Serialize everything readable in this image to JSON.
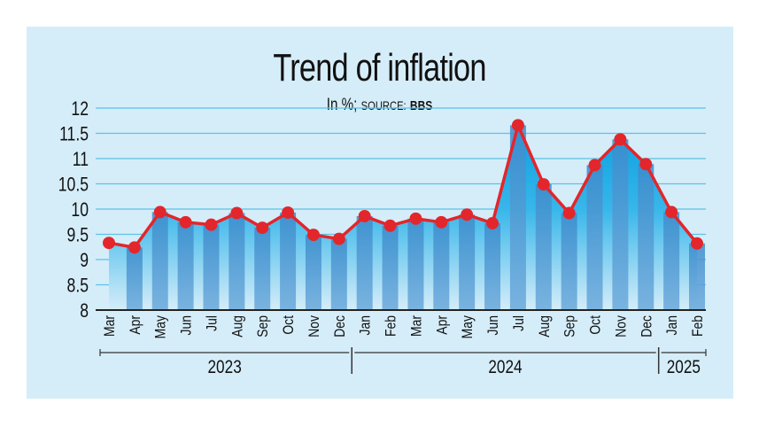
{
  "chart_data": {
    "type": "area",
    "title": "Trend of inflation",
    "subtitle_unit": "In %;",
    "subtitle_source_label": "SOURCE:",
    "subtitle_source": "BBS",
    "categories": [
      "Mar",
      "Apr",
      "May",
      "Jun",
      "Jul",
      "Aug",
      "Sep",
      "Oct",
      "Nov",
      "Dec",
      "Jan",
      "Feb",
      "Mar",
      "Apr",
      "May",
      "Jun",
      "Jul",
      "Aug",
      "Sep",
      "Oct",
      "Nov",
      "Dec",
      "Jan",
      "Feb"
    ],
    "groups": [
      {
        "label": "2023",
        "count": 10
      },
      {
        "label": "2024",
        "count": 12
      },
      {
        "label": "2025",
        "count": 2
      }
    ],
    "values": [
      9.33,
      9.24,
      9.94,
      9.74,
      9.69,
      9.92,
      9.63,
      9.93,
      9.49,
      9.41,
      9.86,
      9.67,
      9.81,
      9.74,
      9.89,
      9.72,
      11.66,
      10.49,
      9.92,
      10.87,
      11.38,
      10.89,
      9.94,
      9.32
    ],
    "yticks": [
      "8",
      "8.5",
      "9",
      "9.5",
      "10",
      "10.5",
      "11",
      "11.5",
      "12"
    ],
    "ylim": [
      8,
      12
    ],
    "grid": true,
    "colors": {
      "line": "#e3262b",
      "marker": "#e3262b",
      "area": "#29aee6",
      "bar": "#4a95d0",
      "grid": "#5cc2e6",
      "background": "#d5edf9"
    }
  }
}
